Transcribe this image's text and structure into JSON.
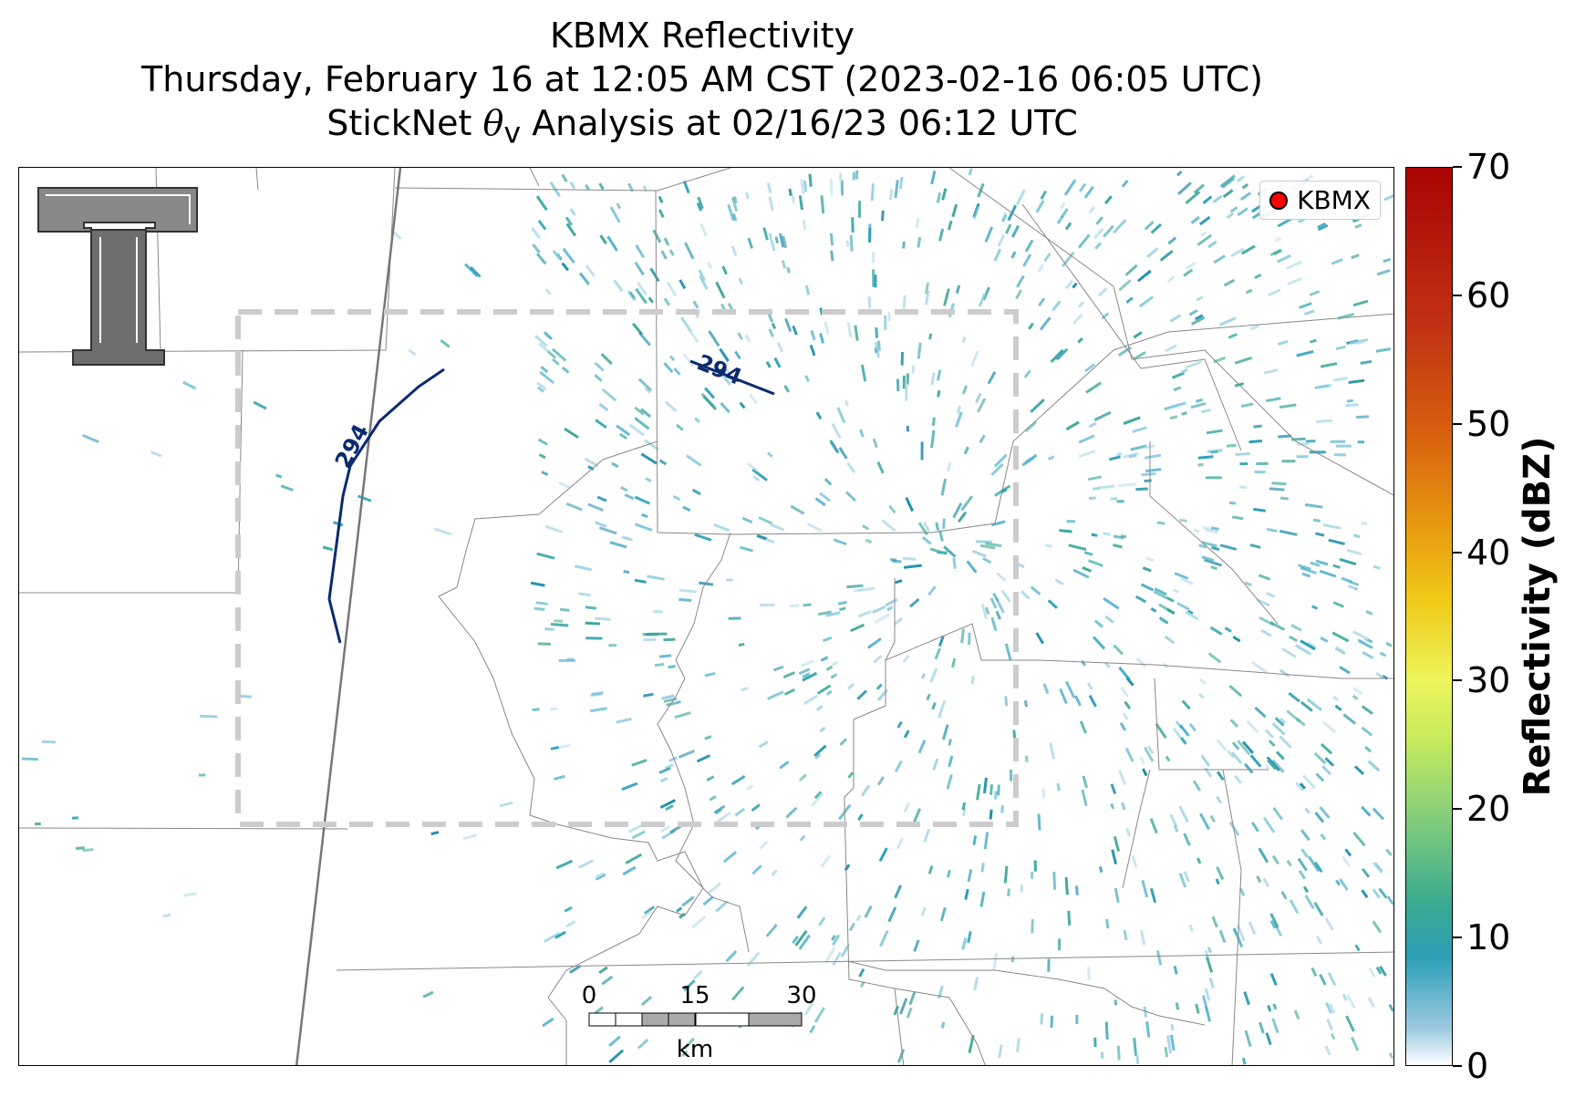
{
  "title": {
    "line1": "KBMX Reflectivity",
    "line2": "Thursday, February 16 at 12:05 AM CST (2023-02-16 06:05 UTC)",
    "line3_prefix": "StickNet ",
    "line3_symbol": "θ",
    "line3_subscript": "v",
    "line3_suffix": " Analysis at 02/16/23 06:12 UTC"
  },
  "legend": {
    "label": "KBMX",
    "marker_color": "#ff0000"
  },
  "contours": [
    {
      "label": "294"
    },
    {
      "label": "294"
    }
  ],
  "scale_bar": {
    "ticks": [
      "0",
      "15",
      "30"
    ],
    "unit": "km"
  },
  "colorbar": {
    "label": "Reflectivity (dBZ)",
    "range": [
      0,
      70
    ],
    "ticks": [
      "0",
      "10",
      "20",
      "30",
      "40",
      "50",
      "60",
      "70"
    ]
  },
  "colors": {
    "contour": "#0b2a6f",
    "analysis_box": "#cccccc",
    "echo": "#2c9fb7"
  },
  "logo": "texas-tech-double-t-logo"
}
